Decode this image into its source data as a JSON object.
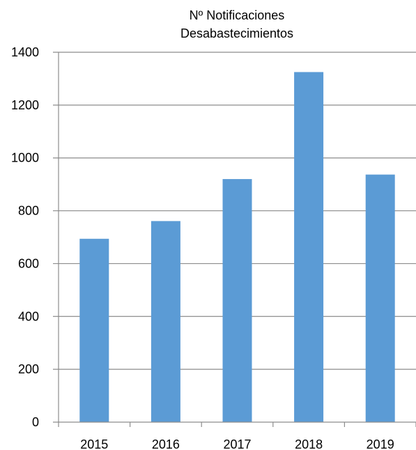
{
  "chart_data": {
    "type": "bar",
    "title": [
      "Nº Notificaciones",
      "Desabastecimientos"
    ],
    "categories": [
      "2015",
      "2016",
      "2017",
      "2018",
      "2019"
    ],
    "values": [
      694,
      761,
      920,
      1325,
      937
    ],
    "xlabel": "",
    "ylabel": "",
    "ylim": [
      0,
      1400
    ],
    "yticks": [
      0,
      200,
      400,
      600,
      800,
      1000,
      1200,
      1400
    ],
    "grid": true,
    "legend": "none",
    "bar_color": "#5b9bd5"
  }
}
